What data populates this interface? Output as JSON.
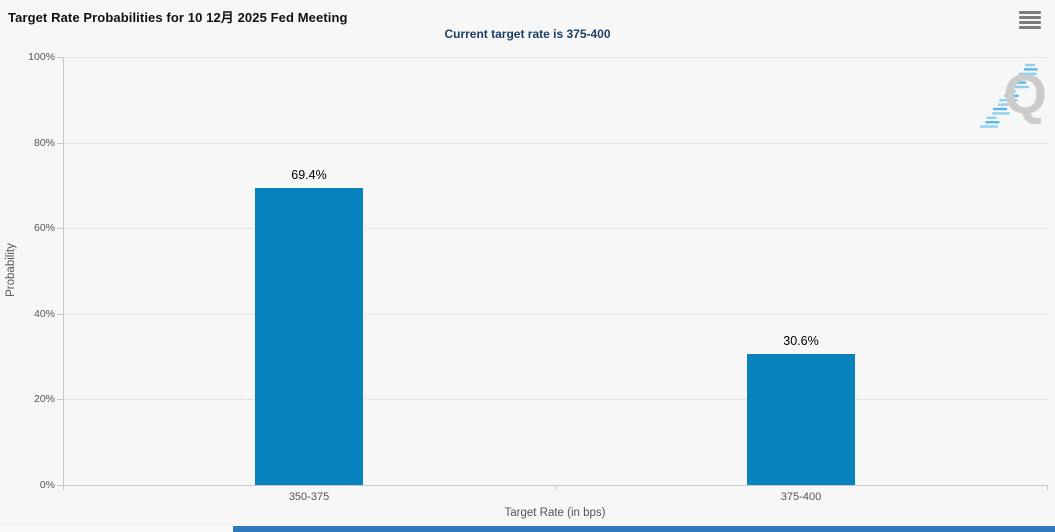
{
  "header": {
    "title": "Target Rate Probabilities for 10 12月 2025 Fed Meeting",
    "menu_icon": "hamburger-icon"
  },
  "subtitle": "Current target rate is 375-400",
  "watermark": {
    "letter": "Q"
  },
  "colors": {
    "background": "#f7f7f7",
    "bar": "#0882bc",
    "subtitle_text": "#1b3f65",
    "title_text": "#111111",
    "axis_label": "#555555",
    "gridline": "#d6d6d6",
    "axis_line": "#c8c8c8",
    "watermark_letter": "#cbcbcb",
    "watermark_dashes": "#8fd0f0",
    "scrollbar_thumb": "#2e7abc"
  },
  "chart_data": {
    "type": "bar",
    "title": "Target Rate Probabilities for 10 12月 2025 Fed Meeting",
    "subtitle": "Current target rate is 375-400",
    "categories": [
      "350-375",
      "375-400"
    ],
    "values": [
      69.4,
      30.6
    ],
    "data_labels": [
      "69.4%",
      "30.6%"
    ],
    "xlabel": "Target Rate (in bps)",
    "ylabel": "Probability",
    "ylim": [
      0,
      100
    ],
    "yticks": [
      0,
      20,
      40,
      60,
      80,
      100
    ],
    "ytick_labels": [
      "0%",
      "20%",
      "40%",
      "60%",
      "80%",
      "100%"
    ],
    "grid": "horizontal-dotted",
    "legend": "none",
    "bar_color": "#0882bc"
  }
}
